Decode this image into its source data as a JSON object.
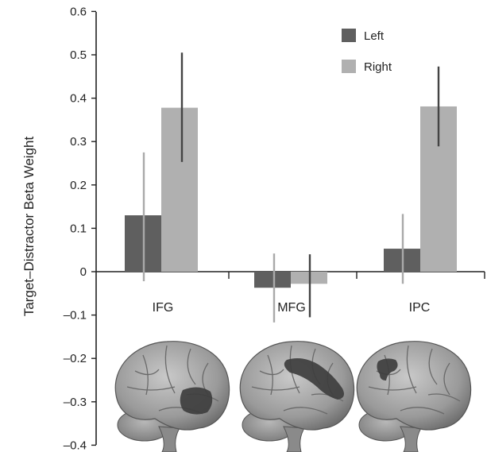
{
  "chart_data": {
    "type": "bar",
    "categories": [
      "IFG",
      "MFG",
      "IPC"
    ],
    "ylabel": "Target–Distractor Beta Weight",
    "ylim": [
      -0.4,
      0.6
    ],
    "yticks": [
      "0.6",
      "0.5",
      "0.4",
      "0.3",
      "0.2",
      "0.1",
      "0",
      "–0.1",
      "–0.2",
      "–0.3",
      "–0.4"
    ],
    "ytick_values": [
      0.6,
      0.5,
      0.4,
      0.3,
      0.2,
      0.1,
      0,
      -0.1,
      -0.2,
      -0.3,
      -0.4
    ],
    "legend_position": "top-right",
    "series": [
      {
        "name": "Left",
        "color": "#5f5f5f",
        "values": [
          0.13,
          -0.037,
          0.053
        ],
        "err_low": [
          -0.022,
          -0.117,
          -0.028
        ],
        "err_high": [
          0.275,
          0.042,
          0.133
        ]
      },
      {
        "name": "Right",
        "color": "#b0b0b0",
        "values": [
          0.378,
          -0.028,
          0.381
        ],
        "err_low": [
          0.253,
          -0.105,
          0.289
        ],
        "err_high": [
          0.505,
          0.04,
          0.473
        ]
      }
    ],
    "annotations": [
      "brain-render-lateral-left-region",
      "brain-render-lateral-left-region",
      "brain-render-lateral-left-region"
    ],
    "brain_region_color": "#3e3e3e"
  }
}
